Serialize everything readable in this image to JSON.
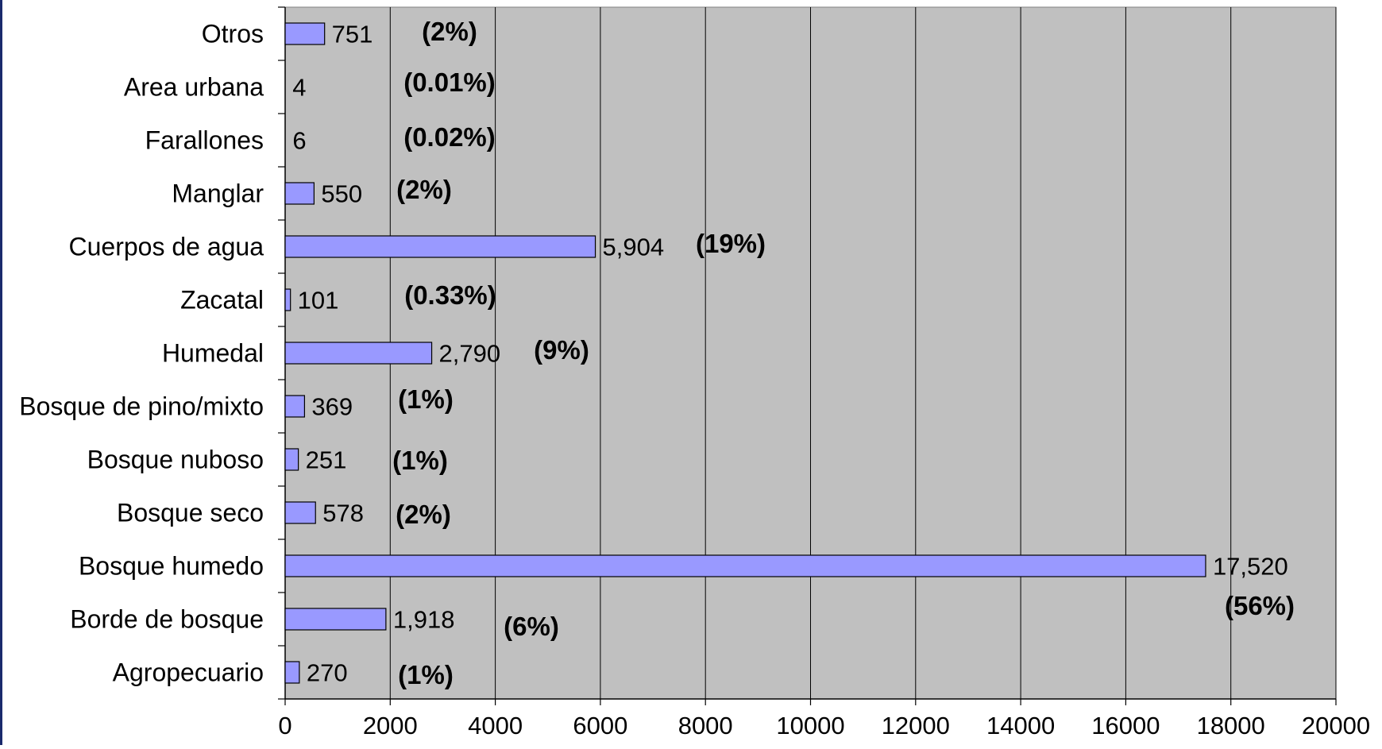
{
  "colors": {
    "plot_background": "#c0c0c0",
    "bar_fill": "#9999ff",
    "bar_stroke": "#000000",
    "grid": "#000000",
    "left_edge": "#1a2a6c"
  },
  "chart_data": {
    "type": "bar",
    "orientation": "horizontal",
    "title": "",
    "xlabel": "",
    "ylabel": "",
    "xlim": [
      0,
      20000
    ],
    "x_ticks": [
      0,
      2000,
      4000,
      6000,
      8000,
      10000,
      12000,
      14000,
      16000,
      18000,
      20000
    ],
    "x_tick_labels": [
      "0",
      "2000",
      "4000",
      "6000",
      "8000",
      "10000",
      "12000",
      "14000",
      "16000",
      "18000",
      "20000"
    ],
    "grid": "vertical",
    "legend": "none",
    "categories": [
      "Otros",
      "Area urbana",
      "Farallones",
      "Manglar",
      "Cuerpos de agua",
      "Zacatal",
      "Humedal",
      "Bosque de pino/mixto",
      "Bosque nuboso",
      "Bosque seco",
      "Bosque humedo",
      "Borde de bosque",
      "Agropecuario"
    ],
    "values": [
      751,
      4,
      6,
      550,
      5904,
      101,
      2790,
      369,
      251,
      578,
      17520,
      1918,
      270
    ],
    "value_labels": [
      "751",
      "4",
      "6",
      "550",
      "5,904",
      "101",
      "2,790",
      "369",
      "251",
      "578",
      "17,520",
      "1,918",
      "270"
    ],
    "percent_labels": [
      "(2%)",
      "(0.01%)",
      "(0.02%)",
      "(2%)",
      "(19%)",
      "(0.33%)",
      "(9%)",
      "(1%)",
      "(1%)",
      "(2%)",
      "(56%)",
      "(6%)",
      "(1%)"
    ]
  }
}
